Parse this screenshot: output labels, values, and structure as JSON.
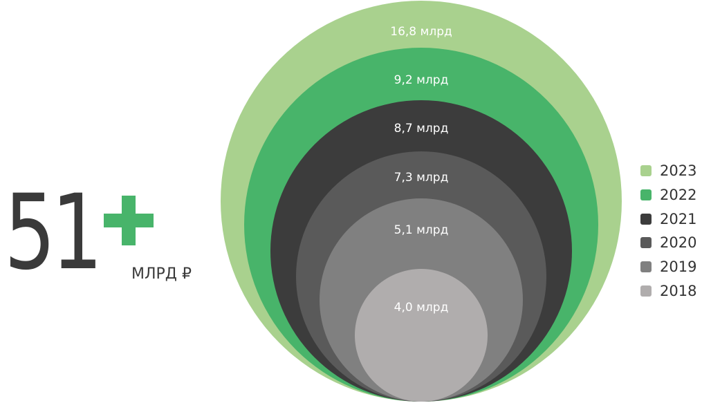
{
  "headline": {
    "number": "51",
    "unit": "МЛРД ₽"
  },
  "colors": {
    "accent": "#48b46a",
    "headline_text": "#3a3a3a",
    "bubble_label": "#ffffff"
  },
  "chart_data": {
    "type": "nested-bubble",
    "title": "",
    "unit": "млрд",
    "legend_position": "right",
    "series": [
      {
        "name": "2023",
        "value": 16.8,
        "label": "16,8 млрд",
        "color": "#a9d18e"
      },
      {
        "name": "2022",
        "value": 9.2,
        "label": "9,2 млрд",
        "color": "#48b46a"
      },
      {
        "name": "2021",
        "value": 8.7,
        "label": "8,7 млрд",
        "color": "#3c3c3c"
      },
      {
        "name": "2020",
        "value": 7.3,
        "label": "7,3 млрд",
        "color": "#5a5a5a"
      },
      {
        "name": "2019",
        "value": 5.1,
        "label": "5,1 млрд",
        "color": "#808080"
      },
      {
        "name": "2018",
        "value": 4.0,
        "label": "4,0 млрд",
        "color": "#b0adad"
      }
    ]
  }
}
